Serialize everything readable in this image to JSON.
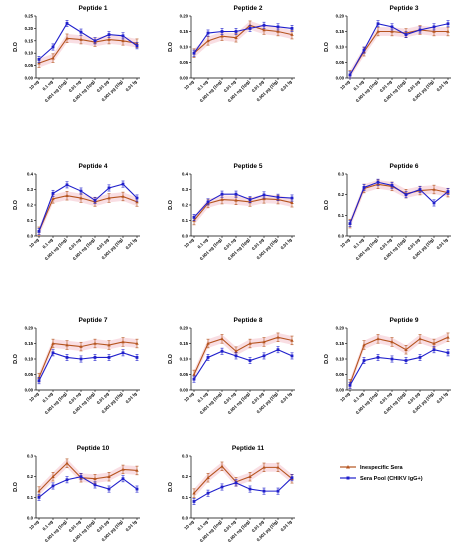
{
  "chart_data": {
    "type": "line",
    "x": [
      "10 ug",
      "0.1 ug",
      "0.001 ug (1ng)",
      "0.01 ng",
      "0.001 ng (1pg)",
      "0.01 pg",
      "0.001 pg (1fg)",
      "0.01 fg"
    ],
    "ylabel": "D.O",
    "legend": {
      "placement": "bottom-right",
      "entries": [
        "Inespecific Sera",
        "Sera Pool (CHIKV IgG+)"
      ]
    },
    "colors": {
      "inespecific": "#b5541f",
      "pool": "#2020cc",
      "error_band": "#f2b6c0"
    },
    "panels": [
      {
        "title": "Peptide 1",
        "ylim": [
          0,
          0.25
        ],
        "yticks": [
          "0.00",
          "0.05",
          "0.10",
          "0.15",
          "0.20",
          "0.25"
        ],
        "series": [
          {
            "name": "Inespecific Sera",
            "values": [
              0.06,
              0.08,
              0.16,
              0.155,
              0.145,
              0.155,
              0.15,
              0.14
            ]
          },
          {
            "name": "Sera Pool (CHIKV IgG+)",
            "values": [
              0.075,
              0.125,
              0.22,
              0.185,
              0.15,
              0.175,
              0.17,
              0.13
            ]
          }
        ]
      },
      {
        "title": "Peptide 2",
        "ylim": [
          0,
          0.2
        ],
        "yticks": [
          "0.00",
          "0.05",
          "0.10",
          "0.15",
          "0.20"
        ],
        "series": [
          {
            "name": "Inespecific Sera",
            "values": [
              0.08,
              0.12,
              0.135,
              0.13,
              0.17,
              0.155,
              0.15,
              0.14
            ]
          },
          {
            "name": "Sera Pool (CHIKV IgG+)",
            "values": [
              0.08,
              0.145,
              0.15,
              0.15,
              0.16,
              0.17,
              0.165,
              0.16
            ]
          }
        ]
      },
      {
        "title": "Peptide 3",
        "ylim": [
          0,
          0.2
        ],
        "yticks": [
          "0.00",
          "0.05",
          "0.10",
          "0.15",
          "0.20"
        ],
        "series": [
          {
            "name": "Inespecific Sera",
            "values": [
              0.01,
              0.085,
              0.15,
              0.15,
              0.145,
              0.155,
              0.15,
              0.15
            ]
          },
          {
            "name": "Sera Pool (CHIKV IgG+)",
            "values": [
              0.01,
              0.09,
              0.175,
              0.165,
              0.14,
              0.155,
              0.165,
              0.175
            ]
          }
        ]
      },
      {
        "title": "Peptide 4",
        "ylim": [
          0,
          0.4
        ],
        "yticks": [
          "0.0",
          "0.1",
          "0.2",
          "0.3",
          "0.4"
        ],
        "series": [
          {
            "name": "Inespecific Sera",
            "values": [
              0.03,
              0.24,
              0.26,
              0.245,
              0.22,
              0.245,
              0.255,
              0.22
            ]
          },
          {
            "name": "Sera Pool (CHIKV IgG+)",
            "values": [
              0.03,
              0.275,
              0.33,
              0.29,
              0.23,
              0.31,
              0.335,
              0.245
            ]
          }
        ]
      },
      {
        "title": "Peptide 5",
        "ylim": [
          0,
          0.4
        ],
        "yticks": [
          "0.0",
          "0.1",
          "0.2",
          "0.3",
          "0.4"
        ],
        "series": [
          {
            "name": "Inespecific Sera",
            "values": [
              0.1,
              0.21,
              0.235,
              0.23,
              0.22,
              0.24,
              0.235,
              0.215
            ]
          },
          {
            "name": "Sera Pool (CHIKV IgG+)",
            "values": [
              0.12,
              0.22,
              0.27,
              0.27,
              0.235,
              0.265,
              0.25,
              0.245
            ]
          }
        ]
      },
      {
        "title": "Peptide 6",
        "ylim": [
          0,
          0.3
        ],
        "yticks": [
          "0.0",
          "0.1",
          "0.2",
          "0.3"
        ],
        "series": [
          {
            "name": "Inespecific Sera",
            "values": [
              0.06,
              0.23,
              0.25,
              0.24,
              0.205,
              0.22,
              0.225,
              0.21
            ]
          },
          {
            "name": "Sera Pool (CHIKV IgG+)",
            "values": [
              0.06,
              0.235,
              0.26,
              0.245,
              0.2,
              0.225,
              0.16,
              0.215
            ]
          }
        ]
      },
      {
        "title": "Peptide 7",
        "ylim": [
          0,
          0.2
        ],
        "yticks": [
          "0.00",
          "0.05",
          "0.10",
          "0.15",
          "0.20"
        ],
        "series": [
          {
            "name": "Inespecific Sera",
            "values": [
              0.04,
              0.15,
              0.145,
              0.14,
              0.15,
              0.145,
              0.155,
              0.15
            ]
          },
          {
            "name": "Sera Pool (CHIKV IgG+)",
            "values": [
              0.03,
              0.12,
              0.105,
              0.1,
              0.105,
              0.105,
              0.12,
              0.105
            ]
          }
        ]
      },
      {
        "title": "Peptide 8",
        "ylim": [
          0,
          0.2
        ],
        "yticks": [
          "0.00",
          "0.05",
          "0.10",
          "0.15",
          "0.20"
        ],
        "series": [
          {
            "name": "Inespecific Sera",
            "values": [
              0.05,
              0.15,
              0.165,
              0.125,
              0.15,
              0.155,
              0.17,
              0.16
            ]
          },
          {
            "name": "Sera Pool (CHIKV IgG+)",
            "values": [
              0.035,
              0.105,
              0.125,
              0.11,
              0.095,
              0.11,
              0.13,
              0.11
            ]
          }
        ]
      },
      {
        "title": "Peptide 9",
        "ylim": [
          0,
          0.2
        ],
        "yticks": [
          "0.00",
          "0.05",
          "0.10",
          "0.15",
          "0.20"
        ],
        "series": [
          {
            "name": "Inespecific Sera",
            "values": [
              0.02,
              0.145,
              0.165,
              0.155,
              0.13,
              0.165,
              0.15,
              0.17
            ]
          },
          {
            "name": "Sera Pool (CHIKV IgG+)",
            "values": [
              0.015,
              0.095,
              0.105,
              0.1,
              0.095,
              0.105,
              0.13,
              0.12
            ]
          }
        ]
      },
      {
        "title": "Peptide 10",
        "ylim": [
          0,
          0.3
        ],
        "yticks": [
          "0.0",
          "0.1",
          "0.2",
          "0.3"
        ],
        "series": [
          {
            "name": "Inespecific Sera",
            "values": [
              0.13,
              0.2,
              0.265,
              0.195,
              0.19,
              0.2,
              0.235,
              0.23
            ]
          },
          {
            "name": "Sera Pool (CHIKV IgG+)",
            "values": [
              0.1,
              0.155,
              0.185,
              0.2,
              0.16,
              0.14,
              0.19,
              0.14
            ]
          }
        ]
      },
      {
        "title": "Peptide 11",
        "ylim": [
          0,
          0.3
        ],
        "yticks": [
          "0.0",
          "0.1",
          "0.2",
          "0.3"
        ],
        "series": [
          {
            "name": "Inespecific Sera",
            "values": [
              0.12,
              0.195,
              0.25,
              0.175,
              0.2,
              0.245,
              0.245,
              0.19
            ]
          },
          {
            "name": "Sera Pool (CHIKV IgG+)",
            "values": [
              0.08,
              0.12,
              0.15,
              0.17,
              0.14,
              0.13,
              0.13,
              0.195
            ]
          }
        ]
      }
    ]
  }
}
